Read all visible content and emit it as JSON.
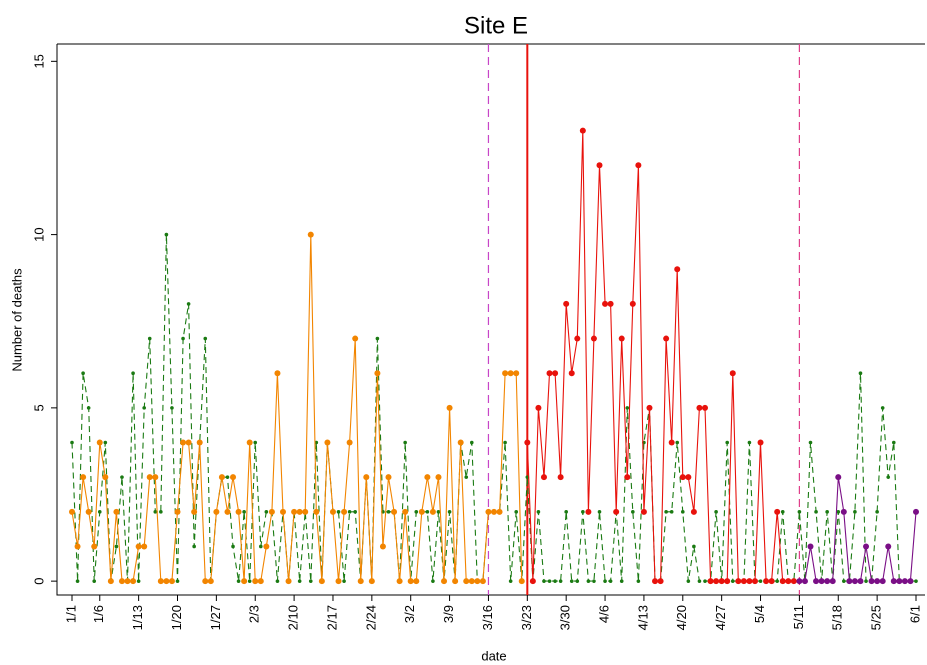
{
  "chart_data": {
    "type": "line",
    "title": "Site E",
    "x_label": "date",
    "y_label": "Number of deaths",
    "categories": [
      "1/1",
      null,
      null,
      null,
      null,
      "1/6",
      null,
      null,
      null,
      null,
      null,
      null,
      "1/13",
      null,
      null,
      null,
      null,
      null,
      null,
      "1/20",
      null,
      null,
      null,
      null,
      null,
      null,
      "1/27",
      null,
      null,
      null,
      null,
      null,
      null,
      "2/3",
      null,
      null,
      null,
      null,
      null,
      null,
      "2/10",
      null,
      null,
      null,
      null,
      null,
      null,
      "2/17",
      null,
      null,
      null,
      null,
      null,
      null,
      "2/24",
      null,
      null,
      null,
      null,
      null,
      null,
      "3/2",
      null,
      null,
      null,
      null,
      null,
      null,
      "3/9",
      null,
      null,
      null,
      null,
      null,
      null,
      "3/16",
      null,
      null,
      null,
      null,
      null,
      null,
      "3/23",
      null,
      null,
      null,
      null,
      null,
      null,
      "3/30",
      null,
      null,
      null,
      null,
      null,
      null,
      "4/6",
      null,
      null,
      null,
      null,
      null,
      null,
      "4/13",
      null,
      null,
      null,
      null,
      null,
      null,
      "4/20",
      null,
      null,
      null,
      null,
      null,
      null,
      "4/27",
      null,
      null,
      null,
      null,
      null,
      null,
      "5/4",
      null,
      null,
      null,
      null,
      null,
      null,
      "5/11",
      null,
      null,
      null,
      null,
      null,
      null,
      "5/18",
      null,
      null,
      null,
      null,
      null,
      null,
      "5/25",
      null,
      null,
      null,
      null,
      null,
      null,
      "6/1"
    ],
    "series": [
      {
        "color": "#1a7a12",
        "style": "dashed",
        "values": [
          4,
          0,
          6,
          5,
          0,
          2,
          4,
          0,
          1,
          3,
          0,
          6,
          0,
          5,
          7,
          2,
          2,
          10,
          5,
          0,
          7,
          8,
          1,
          4,
          7,
          0,
          2,
          3,
          3,
          1,
          0,
          2,
          0,
          4,
          1,
          2,
          2,
          0,
          2,
          0,
          2,
          0,
          2,
          0,
          4,
          0,
          4,
          2,
          2,
          0,
          2,
          2,
          0,
          3,
          0,
          7,
          2,
          2,
          2,
          0,
          4,
          0,
          2,
          2,
          2,
          0,
          2,
          0,
          2,
          0,
          4,
          3,
          4,
          0,
          0,
          2,
          2,
          2,
          4,
          0,
          2,
          0,
          3,
          0,
          2,
          0,
          0,
          0,
          0,
          2,
          0,
          0,
          2,
          0,
          0,
          2,
          0,
          0,
          2,
          0,
          5,
          2,
          0,
          4,
          5,
          0,
          0,
          2,
          2,
          4,
          2,
          0,
          1,
          0,
          0,
          0,
          2,
          0,
          4,
          0,
          0,
          0,
          4,
          0,
          0,
          0,
          0,
          0,
          2,
          0,
          0,
          2,
          0,
          4,
          2,
          0,
          2,
          0,
          2,
          0,
          0,
          2,
          6,
          0,
          0,
          2,
          5,
          3,
          4,
          0,
          0,
          0,
          0
        ]
      },
      {
        "color": "#f28500",
        "style": "solid",
        "values": [
          2,
          1,
          3,
          2,
          1,
          4,
          3,
          0,
          2,
          0,
          0,
          0,
          1,
          1,
          3,
          3,
          0,
          0,
          0,
          2,
          4,
          4,
          2,
          4,
          0,
          0,
          2,
          3,
          2,
          3,
          2,
          0,
          4,
          0,
          0,
          1,
          2,
          6,
          2,
          0,
          2,
          2,
          2,
          10,
          2,
          0,
          4,
          2,
          0,
          2,
          4,
          7,
          0,
          3,
          0,
          6,
          1,
          3,
          2,
          0,
          2,
          0,
          0,
          2,
          3,
          2,
          3,
          0,
          5,
          0,
          4,
          0,
          0,
          0,
          0,
          2,
          2,
          2,
          6,
          6,
          6,
          0,
          null,
          null,
          null,
          null,
          null,
          null,
          null,
          null,
          null,
          null,
          null,
          null,
          null,
          null,
          null,
          null,
          null,
          null,
          null,
          null,
          null,
          null,
          null,
          null,
          null,
          null,
          null,
          null,
          null,
          null,
          null,
          null,
          null,
          null,
          null,
          null,
          null,
          null,
          null,
          null,
          null,
          null,
          null,
          null,
          null,
          null,
          null,
          null,
          null,
          null,
          null,
          null,
          null,
          null,
          null,
          null,
          null,
          null,
          null,
          null,
          null,
          null,
          null,
          null,
          null,
          null,
          null,
          null,
          null,
          null,
          null
        ]
      },
      {
        "color": "#e8120c",
        "style": "solid",
        "values": [
          null,
          null,
          null,
          null,
          null,
          null,
          null,
          null,
          null,
          null,
          null,
          null,
          null,
          null,
          null,
          null,
          null,
          null,
          null,
          null,
          null,
          null,
          null,
          null,
          null,
          null,
          null,
          null,
          null,
          null,
          null,
          null,
          null,
          null,
          null,
          null,
          null,
          null,
          null,
          null,
          null,
          null,
          null,
          null,
          null,
          null,
          null,
          null,
          null,
          null,
          null,
          null,
          null,
          null,
          null,
          null,
          null,
          null,
          null,
          null,
          null,
          null,
          null,
          null,
          null,
          null,
          null,
          null,
          null,
          null,
          null,
          null,
          null,
          null,
          null,
          null,
          null,
          null,
          null,
          null,
          null,
          null,
          4,
          0,
          5,
          3,
          6,
          6,
          3,
          8,
          6,
          7,
          13,
          2,
          7,
          12,
          8,
          8,
          2,
          7,
          3,
          8,
          12,
          2,
          5,
          0,
          0,
          7,
          4,
          9,
          3,
          3,
          2,
          5,
          5,
          0,
          0,
          0,
          0,
          6,
          0,
          0,
          0,
          0,
          4,
          0,
          0,
          2,
          0,
          0,
          0,
          null,
          null,
          null,
          null,
          null,
          null,
          null,
          null,
          null,
          null,
          null,
          null,
          null,
          null,
          null,
          null,
          null,
          null,
          null,
          null,
          null,
          null
        ]
      },
      {
        "color": "#7a0f86",
        "style": "solid",
        "values": [
          null,
          null,
          null,
          null,
          null,
          null,
          null,
          null,
          null,
          null,
          null,
          null,
          null,
          null,
          null,
          null,
          null,
          null,
          null,
          null,
          null,
          null,
          null,
          null,
          null,
          null,
          null,
          null,
          null,
          null,
          null,
          null,
          null,
          null,
          null,
          null,
          null,
          null,
          null,
          null,
          null,
          null,
          null,
          null,
          null,
          null,
          null,
          null,
          null,
          null,
          null,
          null,
          null,
          null,
          null,
          null,
          null,
          null,
          null,
          null,
          null,
          null,
          null,
          null,
          null,
          null,
          null,
          null,
          null,
          null,
          null,
          null,
          null,
          null,
          null,
          null,
          null,
          null,
          null,
          null,
          null,
          null,
          null,
          null,
          null,
          null,
          null,
          null,
          null,
          null,
          null,
          null,
          null,
          null,
          null,
          null,
          null,
          null,
          null,
          null,
          null,
          null,
          null,
          null,
          null,
          null,
          null,
          null,
          null,
          null,
          null,
          null,
          null,
          null,
          null,
          null,
          null,
          null,
          null,
          null,
          null,
          null,
          null,
          null,
          null,
          null,
          null,
          null,
          null,
          null,
          null,
          0,
          0,
          1,
          0,
          0,
          0,
          0,
          3,
          2,
          0,
          0,
          0,
          1,
          0,
          0,
          0,
          1,
          0,
          0,
          0,
          0,
          2
        ]
      }
    ],
    "vlines": [
      {
        "x": "3/16",
        "color": "#c845c8",
        "style": "dashed"
      },
      {
        "x": "3/23",
        "color": "#e8120c",
        "style": "solid"
      },
      {
        "x": "5/11",
        "color": "#e0408a",
        "style": "dashed"
      }
    ],
    "ylim": [
      -0.4,
      15.5
    ],
    "yticks": [
      0,
      5,
      10,
      15
    ]
  }
}
